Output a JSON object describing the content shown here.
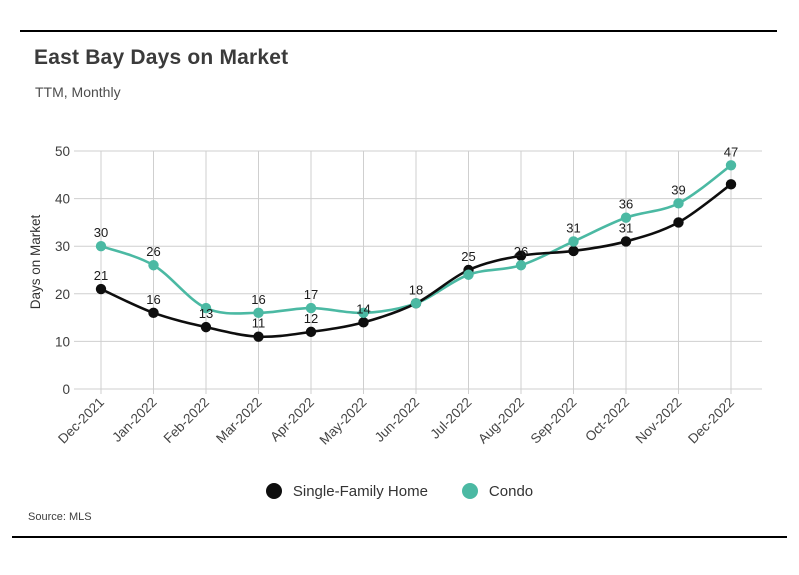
{
  "header": {
    "title": "East Bay Days on Market",
    "subtitle": "TTM, Monthly"
  },
  "footer": {
    "source": "Source: MLS"
  },
  "colors": {
    "single_family": "#0e0e0e",
    "condo": "#4bb9a3",
    "grid": "#cfcfcf",
    "label_text": "#1c1c1c",
    "axis_text": "#3d3d3d"
  },
  "chart_data": {
    "type": "line",
    "title": "East Bay Days on Market",
    "subtitle": "TTM, Monthly",
    "x": [
      "Dec-2021",
      "Jan-2022",
      "Feb-2022",
      "Mar-2022",
      "Apr-2022",
      "May-2022",
      "Jun-2022",
      "Jul-2022",
      "Aug-2022",
      "Sep-2022",
      "Oct-2022",
      "Nov-2022",
      "Dec-2022"
    ],
    "series": [
      {
        "name": "Single-Family Home",
        "color": "#0e0e0e",
        "values": [
          21,
          16,
          13,
          11,
          12,
          14,
          18,
          25,
          28,
          29,
          31,
          35,
          43
        ],
        "shown_labels": [
          21,
          16,
          13,
          11,
          12,
          14,
          null,
          25,
          null,
          null,
          31,
          null,
          null
        ]
      },
      {
        "name": "Condo",
        "color": "#4bb9a3",
        "values": [
          30,
          26,
          17,
          16,
          17,
          16,
          18,
          24,
          26,
          31,
          36,
          39,
          47
        ],
        "shown_labels": [
          30,
          26,
          null,
          16,
          17,
          null,
          18,
          null,
          26,
          31,
          36,
          39,
          47
        ]
      }
    ],
    "xlabel": "",
    "ylabel": "Days on Market",
    "ylim": [
      0,
      50
    ],
    "yticks": [
      0,
      10,
      20,
      30,
      40,
      50
    ],
    "grid": true,
    "legend_position": "bottom"
  }
}
